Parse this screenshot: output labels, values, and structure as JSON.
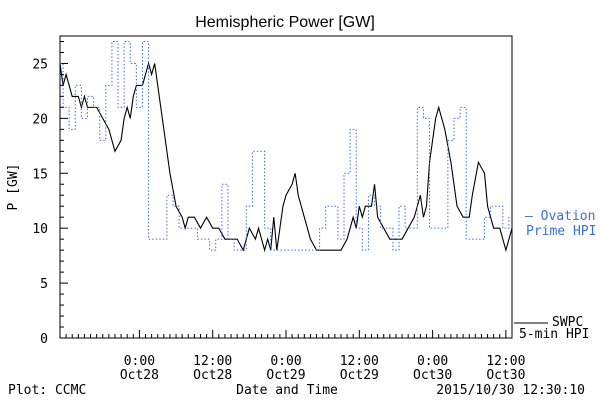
{
  "chart_data": {
    "type": "line",
    "title": "Hemispheric Power [GW]",
    "xlabel": "Date and Time",
    "ylabel": "P [GW]",
    "ylim": [
      0,
      27.5
    ],
    "xlim": [
      "2015-10-27 11:00",
      "2015-10-30 13:00"
    ],
    "y_ticks": [
      0,
      5,
      10,
      15,
      20,
      25
    ],
    "x_ticks": [
      {
        "t": "2015-10-28 00:00",
        "line1": "0:00",
        "line2": "Oct28"
      },
      {
        "t": "2015-10-28 12:00",
        "line1": "12:00",
        "line2": "Oct28"
      },
      {
        "t": "2015-10-29 00:00",
        "line1": "0:00",
        "line2": "Oct29"
      },
      {
        "t": "2015-10-29 12:00",
        "line1": "12:00",
        "line2": "Oct29"
      },
      {
        "t": "2015-10-30 00:00",
        "line1": "0:00",
        "line2": "Oct30"
      },
      {
        "t": "2015-10-30 12:00",
        "line1": "12:00",
        "line2": "Oct30"
      }
    ],
    "series": [
      {
        "name": "SWPC 5-min HPI",
        "color": "#000000",
        "style": "solid",
        "points": [
          [
            "2015-10-27 11:00",
            25
          ],
          [
            "2015-10-27 11:30",
            23
          ],
          [
            "2015-10-27 12:00",
            24
          ],
          [
            "2015-10-27 12:30",
            23
          ],
          [
            "2015-10-27 13:00",
            22
          ],
          [
            "2015-10-27 14:00",
            22
          ],
          [
            "2015-10-27 14:30",
            21
          ],
          [
            "2015-10-27 15:00",
            22
          ],
          [
            "2015-10-27 15:30",
            21
          ],
          [
            "2015-10-27 17:00",
            21
          ],
          [
            "2015-10-27 18:00",
            20
          ],
          [
            "2015-10-27 19:00",
            19
          ],
          [
            "2015-10-27 20:00",
            17
          ],
          [
            "2015-10-27 21:00",
            18
          ],
          [
            "2015-10-27 21:30",
            20
          ],
          [
            "2015-10-27 22:00",
            21
          ],
          [
            "2015-10-27 22:30",
            20
          ],
          [
            "2015-10-27 23:00",
            22
          ],
          [
            "2015-10-27 23:30",
            23
          ],
          [
            "2015-10-28 00:30",
            23
          ],
          [
            "2015-10-28 01:00",
            24
          ],
          [
            "2015-10-28 01:30",
            25
          ],
          [
            "2015-10-28 02:00",
            24
          ],
          [
            "2015-10-28 02:30",
            25
          ],
          [
            "2015-10-28 03:00",
            23
          ],
          [
            "2015-10-28 04:00",
            19
          ],
          [
            "2015-10-28 05:00",
            15
          ],
          [
            "2015-10-28 06:00",
            12
          ],
          [
            "2015-10-28 07:00",
            11
          ],
          [
            "2015-10-28 07:30",
            10
          ],
          [
            "2015-10-28 08:00",
            11
          ],
          [
            "2015-10-28 09:00",
            11
          ],
          [
            "2015-10-28 10:00",
            10
          ],
          [
            "2015-10-28 11:00",
            11
          ],
          [
            "2015-10-28 12:00",
            10
          ],
          [
            "2015-10-28 13:00",
            10
          ],
          [
            "2015-10-28 14:00",
            9
          ],
          [
            "2015-10-28 15:00",
            9
          ],
          [
            "2015-10-28 16:00",
            9
          ],
          [
            "2015-10-28 17:00",
            8
          ],
          [
            "2015-10-28 17:30",
            9
          ],
          [
            "2015-10-28 18:00",
            10
          ],
          [
            "2015-10-28 19:00",
            9
          ],
          [
            "2015-10-28 19:30",
            10
          ],
          [
            "2015-10-28 20:00",
            9
          ],
          [
            "2015-10-28 20:30",
            8
          ],
          [
            "2015-10-28 21:00",
            9
          ],
          [
            "2015-10-28 21:30",
            8
          ],
          [
            "2015-10-28 22:00",
            11
          ],
          [
            "2015-10-28 22:30",
            8
          ],
          [
            "2015-10-28 23:00",
            10
          ],
          [
            "2015-10-28 23:30",
            12
          ],
          [
            "2015-10-29 00:00",
            13
          ],
          [
            "2015-10-29 01:00",
            14
          ],
          [
            "2015-10-29 01:30",
            15
          ],
          [
            "2015-10-29 02:00",
            13
          ],
          [
            "2015-10-29 03:00",
            11
          ],
          [
            "2015-10-29 04:00",
            9
          ],
          [
            "2015-10-29 05:00",
            8
          ],
          [
            "2015-10-29 09:00",
            8
          ],
          [
            "2015-10-29 10:00",
            9
          ],
          [
            "2015-10-29 11:00",
            11
          ],
          [
            "2015-10-29 11:30",
            10
          ],
          [
            "2015-10-29 12:00",
            12
          ],
          [
            "2015-10-29 12:30",
            11
          ],
          [
            "2015-10-29 13:00",
            12
          ],
          [
            "2015-10-29 14:00",
            12
          ],
          [
            "2015-10-29 14:30",
            14
          ],
          [
            "2015-10-29 15:00",
            11
          ],
          [
            "2015-10-29 16:00",
            10
          ],
          [
            "2015-10-29 17:00",
            9
          ],
          [
            "2015-10-29 19:00",
            9
          ],
          [
            "2015-10-29 20:00",
            10
          ],
          [
            "2015-10-29 21:00",
            11
          ],
          [
            "2015-10-29 22:00",
            13
          ],
          [
            "2015-10-29 22:30",
            11
          ],
          [
            "2015-10-29 23:00",
            12
          ],
          [
            "2015-10-29 23:30",
            16
          ],
          [
            "2015-10-30 00:30",
            20
          ],
          [
            "2015-10-30 01:00",
            21
          ],
          [
            "2015-10-30 02:00",
            19
          ],
          [
            "2015-10-30 03:00",
            16
          ],
          [
            "2015-10-30 04:00",
            12
          ],
          [
            "2015-10-30 05:00",
            11
          ],
          [
            "2015-10-30 06:00",
            11
          ],
          [
            "2015-10-30 06:30",
            13
          ],
          [
            "2015-10-30 07:30",
            16
          ],
          [
            "2015-10-30 08:30",
            15
          ],
          [
            "2015-10-30 09:00",
            12
          ],
          [
            "2015-10-30 10:00",
            10
          ],
          [
            "2015-10-30 11:00",
            10
          ],
          [
            "2015-10-30 12:00",
            8
          ],
          [
            "2015-10-30 12:30",
            9
          ],
          [
            "2015-10-30 13:00",
            10
          ]
        ]
      },
      {
        "name": "Ovation Prime HPI",
        "color": "#3a6fd4",
        "style": "dotted-steps",
        "points": [
          [
            "2015-10-27 11:00",
            25
          ],
          [
            "2015-10-27 11:30",
            21
          ],
          [
            "2015-10-27 12:30",
            19
          ],
          [
            "2015-10-27 13:30",
            23
          ],
          [
            "2015-10-27 14:30",
            20
          ],
          [
            "2015-10-27 15:30",
            22
          ],
          [
            "2015-10-27 16:30",
            21
          ],
          [
            "2015-10-27 17:30",
            18
          ],
          [
            "2015-10-27 18:30",
            23
          ],
          [
            "2015-10-27 19:30",
            27
          ],
          [
            "2015-10-27 20:30",
            21
          ],
          [
            "2015-10-27 21:30",
            27
          ],
          [
            "2015-10-27 22:30",
            25
          ],
          [
            "2015-10-27 23:30",
            21
          ],
          [
            "2015-10-28 00:30",
            27
          ],
          [
            "2015-10-28 01:30",
            9
          ],
          [
            "2015-10-28 04:30",
            13
          ],
          [
            "2015-10-28 05:30",
            12
          ],
          [
            "2015-10-28 06:30",
            10
          ],
          [
            "2015-10-28 09:30",
            9
          ],
          [
            "2015-10-28 11:30",
            8
          ],
          [
            "2015-10-28 12:30",
            9
          ],
          [
            "2015-10-28 13:30",
            14
          ],
          [
            "2015-10-28 14:30",
            9
          ],
          [
            "2015-10-28 15:30",
            8
          ],
          [
            "2015-10-28 16:30",
            8
          ],
          [
            "2015-10-28 17:30",
            12
          ],
          [
            "2015-10-28 18:30",
            17
          ],
          [
            "2015-10-28 20:30",
            10
          ],
          [
            "2015-10-28 21:30",
            8
          ],
          [
            "2015-10-29 05:30",
            10
          ],
          [
            "2015-10-29 06:30",
            12
          ],
          [
            "2015-10-29 08:30",
            9
          ],
          [
            "2015-10-29 09:30",
            15
          ],
          [
            "2015-10-29 10:30",
            19
          ],
          [
            "2015-10-29 11:30",
            10
          ],
          [
            "2015-10-29 12:30",
            8
          ],
          [
            "2015-10-29 13:30",
            13
          ],
          [
            "2015-10-29 14:30",
            12
          ],
          [
            "2015-10-29 15:30",
            10
          ],
          [
            "2015-10-29 17:30",
            8
          ],
          [
            "2015-10-29 18:30",
            12
          ],
          [
            "2015-10-29 19:30",
            10
          ],
          [
            "2015-10-29 21:30",
            21
          ],
          [
            "2015-10-29 22:30",
            20
          ],
          [
            "2015-10-29 23:30",
            10
          ],
          [
            "2015-10-30 02:30",
            18
          ],
          [
            "2015-10-30 03:30",
            20
          ],
          [
            "2015-10-30 04:30",
            21
          ],
          [
            "2015-10-30 05:30",
            9
          ],
          [
            "2015-10-30 08:30",
            11
          ],
          [
            "2015-10-30 09:30",
            12
          ],
          [
            "2015-10-30 11:30",
            10
          ],
          [
            "2015-10-30 12:30",
            11
          ]
        ]
      }
    ],
    "legend": {
      "placement": "right",
      "entries": [
        {
          "line1": "— Ovation",
          "line2": "Prime HPI",
          "color": "#3a6fd4"
        },
        {
          "line1": "SWPC",
          "line2": "5-min HPI",
          "color": "#000000"
        }
      ]
    },
    "footer": {
      "left": "Plot: CCMC",
      "right": "2015/10/30 12:30:10"
    }
  }
}
